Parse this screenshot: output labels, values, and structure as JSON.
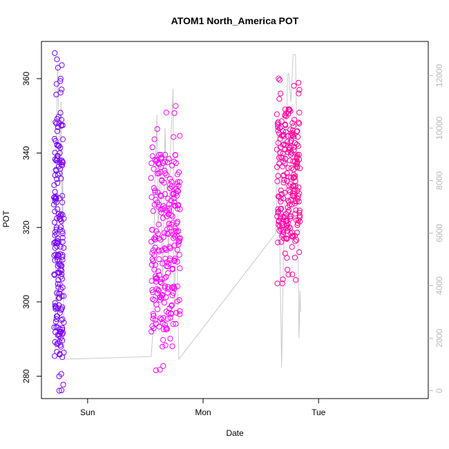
{
  "chart_data": {
    "type": "scatter",
    "title": "ATOM1 North_America POT",
    "xlabel": "Date",
    "ylabel": "POT",
    "x_ticks": [
      {
        "label": "Sun",
        "day": 1.0
      },
      {
        "label": "Mon",
        "day": 2.0
      },
      {
        "label": "Tue",
        "day": 3.0
      }
    ],
    "xlim_days": [
      0.6,
      3.95
    ],
    "ylim": [
      274.0,
      370.0
    ],
    "y_ticks": [
      280,
      300,
      320,
      340,
      360
    ],
    "y2lim": [
      -300,
      13300
    ],
    "y2_ticks": [
      0,
      2000,
      4000,
      6000,
      8000,
      10000,
      12000
    ],
    "grid": false,
    "colors": {
      "points_start": "#6a00ff",
      "points_mid": "#ff00ff",
      "points_end": "#ff0090",
      "line": "#c8c8c8",
      "right_axis": "#b8b8b8"
    },
    "series": [
      {
        "kind": "points",
        "clusters": [
          {
            "day_start": 0.71,
            "day_end": 0.79,
            "y_min": 276,
            "y_max": 367,
            "n": 200,
            "core_lo": 285,
            "core_hi": 350,
            "hue_from": 0.0,
            "hue_to": 0.08
          },
          {
            "day_start": 1.55,
            "day_end": 1.8,
            "y_min": 281,
            "y_max": 354,
            "n": 260,
            "core_lo": 292,
            "core_hi": 340,
            "hue_from": 0.42,
            "hue_to": 0.58
          },
          {
            "day_start": 2.64,
            "day_end": 2.84,
            "y_min": 304,
            "y_max": 361,
            "n": 240,
            "core_lo": 316,
            "core_hi": 352,
            "hue_from": 0.86,
            "hue_to": 1.0
          }
        ]
      },
      {
        "kind": "line",
        "axis": "right",
        "points": [
          [
            0.72,
            1500
          ],
          [
            0.73,
            9500
          ],
          [
            0.74,
            12400
          ],
          [
            0.75,
            10500
          ],
          [
            0.76,
            8000
          ],
          [
            0.77,
            11000
          ],
          [
            0.78,
            6000
          ],
          [
            0.785,
            8500
          ],
          [
            0.79,
            4000
          ],
          [
            0.8,
            1200
          ],
          [
            1.55,
            1300
          ],
          [
            1.57,
            2500
          ],
          [
            1.58,
            7500
          ],
          [
            1.6,
            10500
          ],
          [
            1.61,
            6000
          ],
          [
            1.63,
            9000
          ],
          [
            1.65,
            4000
          ],
          [
            1.67,
            10000
          ],
          [
            1.7,
            5000
          ],
          [
            1.72,
            9500
          ],
          [
            1.74,
            11500
          ],
          [
            1.75,
            3000
          ],
          [
            1.77,
            6500
          ],
          [
            1.79,
            1200
          ],
          [
            2.63,
            6000
          ],
          [
            2.65,
            10000
          ],
          [
            2.67,
            4000
          ],
          [
            2.68,
            900
          ],
          [
            2.7,
            6000
          ],
          [
            2.72,
            9000
          ],
          [
            2.73,
            12000
          ],
          [
            2.74,
            12100
          ],
          [
            2.76,
            11000
          ],
          [
            2.78,
            12800
          ],
          [
            2.8,
            12800
          ],
          [
            2.82,
            7000
          ],
          [
            2.83,
            2000
          ],
          [
            2.84,
            3800
          ],
          [
            2.845,
            3000
          ]
        ]
      }
    ]
  }
}
